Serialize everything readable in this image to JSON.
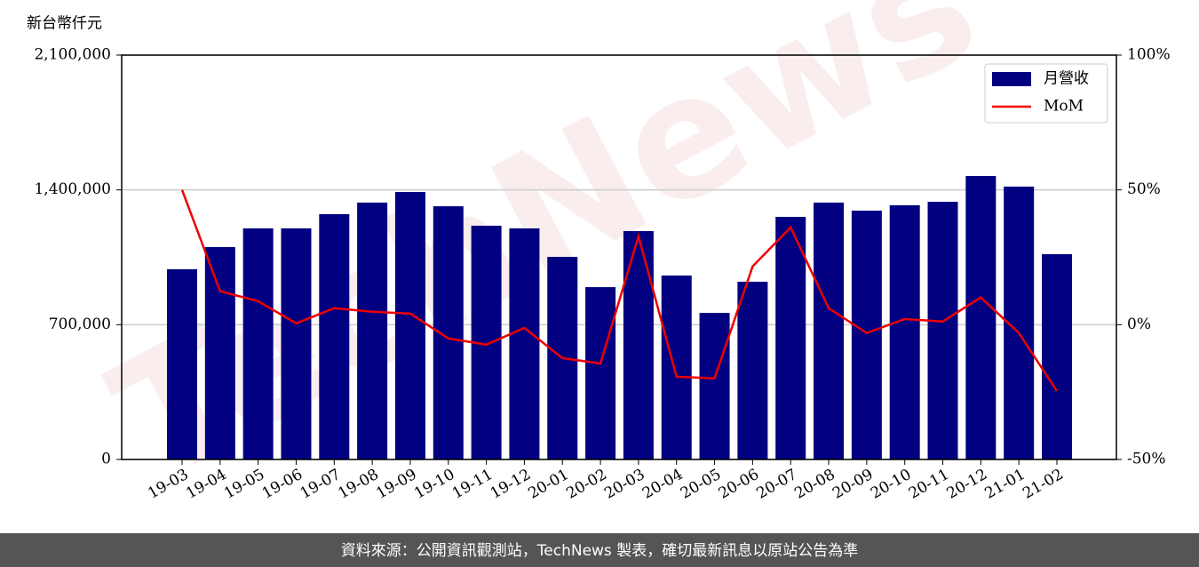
{
  "chart_data": {
    "type": "bar_line",
    "y_label": "新台幣仟元",
    "watermark": "TechNews",
    "source": "資料來源：公開資訊觀測站，TechNews 製表，確切最新訊息以原站公告為準",
    "categories": [
      "19-03",
      "19-04",
      "19-05",
      "19-06",
      "19-07",
      "19-08",
      "19-09",
      "19-10",
      "19-11",
      "19-12",
      "20-01",
      "20-02",
      "20-03",
      "20-04",
      "20-05",
      "20-06",
      "20-07",
      "20-08",
      "20-09",
      "20-10",
      "20-11",
      "20-12",
      "21-01",
      "21-02"
    ],
    "series": [
      {
        "name": "月營收",
        "type": "bar",
        "color": "#000080",
        "values": [
          988000,
          1103000,
          1200000,
          1200000,
          1274000,
          1334000,
          1389000,
          1315000,
          1214000,
          1200000,
          1052000,
          895000,
          1186000,
          955000,
          761000,
          923000,
          1260000,
          1334000,
          1292000,
          1320000,
          1338000,
          1472000,
          1417000,
          1066000
        ]
      },
      {
        "name": "MoM",
        "type": "line",
        "axis": "y2",
        "color": "#ee0000",
        "values": [
          50,
          12.4,
          8.7,
          0.5,
          6.1,
          4.8,
          4.1,
          -5.1,
          -7.4,
          -1.2,
          -12.4,
          -14.4,
          32.8,
          -19.3,
          -19.9,
          21.6,
          36.1,
          6.1,
          -3.1,
          2.1,
          1.2,
          10.1,
          -3.1,
          -24.6
        ]
      }
    ],
    "ylim": [
      0,
      2100000
    ],
    "yticks": [
      0,
      {
        "value": 700000,
        "label": "700,000"
      },
      {
        "value": 1400000,
        "label": "1,400,000"
      },
      {
        "value": 2100000,
        "label": "2,100,000"
      }
    ],
    "y2lim": [
      -50,
      100
    ],
    "y2ticks": [
      {
        "value": -50,
        "label": "-50%"
      },
      {
        "value": 0,
        "label": "0%"
      },
      {
        "value": 50,
        "label": "50%"
      },
      {
        "value": 100,
        "label": "100%"
      }
    ],
    "grid": true,
    "legend": "upper right"
  }
}
